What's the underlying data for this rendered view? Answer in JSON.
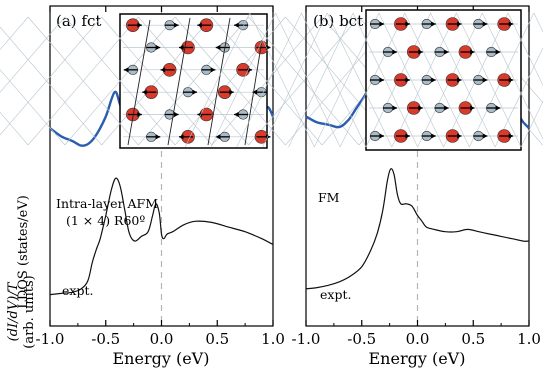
{
  "chart_data": [
    {
      "type": "line",
      "panel_label": "(a) fct",
      "xlim": [
        -1.0,
        1.0
      ],
      "xticks": [
        "-1.0",
        "-0.5",
        "0.0",
        "0.5",
        "1.0"
      ],
      "xlabel": "Energy (eV)",
      "annotations": {
        "calc_label_line1": "Intra-layer AFM",
        "calc_label_line2": "(1 × 4) R60º",
        "expt_label": "expt."
      },
      "series": [
        {
          "color": "#2a5db0",
          "x": [
            -1.0,
            -0.9,
            -0.8,
            -0.72,
            -0.65,
            -0.58,
            -0.5,
            -0.42,
            -0.37,
            -0.3,
            -0.24,
            -0.18,
            -0.12,
            -0.07,
            -0.03,
            0.0,
            0.04,
            0.1,
            0.15,
            0.22,
            0.3,
            0.37,
            0.43,
            0.5,
            0.56,
            0.62,
            0.7,
            0.78,
            0.85,
            0.9,
            0.95,
            1.0
          ],
          "y": [
            0.45,
            0.38,
            0.34,
            0.3,
            0.32,
            0.4,
            0.55,
            0.76,
            0.65,
            0.48,
            0.43,
            0.48,
            0.55,
            0.48,
            0.42,
            0.44,
            0.5,
            0.55,
            0.5,
            0.46,
            0.5,
            0.62,
            0.78,
            0.72,
            0.58,
            0.55,
            0.6,
            0.5,
            0.42,
            0.5,
            0.63,
            0.55
          ]
        },
        {
          "color": "#111111",
          "x": [
            -1.0,
            -0.9,
            -0.8,
            -0.72,
            -0.66,
            -0.62,
            -0.58,
            -0.55,
            -0.5,
            -0.45,
            -0.41,
            -0.37,
            -0.33,
            -0.29,
            -0.24,
            -0.18,
            -0.12,
            -0.08,
            -0.05,
            -0.02,
            0.0,
            0.02,
            0.05,
            0.1,
            0.2,
            0.3,
            0.45,
            0.6,
            0.75,
            0.9,
            1.0
          ],
          "y": [
            -0.98,
            -0.97,
            -0.96,
            -0.93,
            -0.86,
            -0.7,
            -0.58,
            -0.5,
            -0.3,
            -0.08,
            0.02,
            -0.05,
            -0.25,
            -0.45,
            -0.52,
            -0.48,
            -0.44,
            -0.3,
            -0.2,
            -0.28,
            -0.46,
            -0.5,
            -0.46,
            -0.44,
            -0.38,
            -0.35,
            -0.36,
            -0.4,
            -0.44,
            -0.5,
            -0.55
          ]
        }
      ]
    },
    {
      "type": "line",
      "panel_label": "(b) bct",
      "xlim": [
        -1.0,
        1.0
      ],
      "xticks": [
        "-1.0",
        "-0.5",
        "0.0",
        "0.5",
        "1.0"
      ],
      "xlabel": "Energy (eV)",
      "annotations": {
        "calc_label": "FM",
        "expt_label": "expt."
      },
      "series": [
        {
          "color": "#2a5db0",
          "x": [
            -1.0,
            -0.9,
            -0.8,
            -0.7,
            -0.62,
            -0.55,
            -0.48,
            -0.42,
            -0.36,
            -0.31,
            -0.28,
            -0.25,
            -0.22,
            -0.18,
            -0.13,
            -0.08,
            -0.02,
            0.03,
            0.08,
            0.13,
            0.2,
            0.25,
            0.3,
            0.38,
            0.45,
            0.52,
            0.6,
            0.68,
            0.75,
            0.82,
            0.88,
            0.95,
            1.0
          ],
          "y": [
            0.55,
            0.5,
            0.48,
            0.46,
            0.52,
            0.62,
            0.72,
            0.82,
            0.92,
            1.02,
            1.08,
            1.02,
            0.8,
            0.62,
            0.52,
            0.48,
            0.52,
            0.62,
            0.55,
            0.5,
            0.63,
            0.7,
            0.6,
            0.55,
            0.62,
            0.58,
            0.52,
            0.48,
            0.45,
            0.52,
            0.58,
            0.5,
            0.45
          ]
        },
        {
          "color": "#111111",
          "x": [
            -1.0,
            -0.9,
            -0.8,
            -0.7,
            -0.6,
            -0.5,
            -0.42,
            -0.36,
            -0.31,
            -0.27,
            -0.24,
            -0.21,
            -0.18,
            -0.15,
            -0.1,
            -0.05,
            0.0,
            0.04,
            0.08,
            0.15,
            0.25,
            0.35,
            0.45,
            0.55,
            0.65,
            0.75,
            0.85,
            0.95,
            1.0
          ],
          "y": [
            -0.93,
            -0.92,
            -0.9,
            -0.87,
            -0.82,
            -0.74,
            -0.6,
            -0.45,
            -0.25,
            0.0,
            0.1,
            0.05,
            -0.12,
            -0.2,
            -0.2,
            -0.22,
            -0.3,
            -0.35,
            -0.4,
            -0.42,
            -0.44,
            -0.44,
            -0.42,
            -0.44,
            -0.46,
            -0.48,
            -0.5,
            -0.52,
            -0.52
          ]
        }
      ]
    }
  ],
  "ylabel_main": "LDOS (states/eV)",
  "ylabel_expt_line1": "(dI/dV)/T",
  "ylabel_expt_line2": "(arb. units)",
  "colors": {
    "calc_curve": "#2a5db0",
    "expt_curve": "#111111",
    "fermi_line": "#b5b5b5",
    "atom_top": "#d93a2b",
    "atom_bottom": "#a9bcc8",
    "lattice_line": "#b9c7d0"
  },
  "insets": {
    "fct_rows": [
      "R-B-B-R",
      "B-R-R-B"
    ],
    "bct_rows": [
      "alternating"
    ]
  }
}
